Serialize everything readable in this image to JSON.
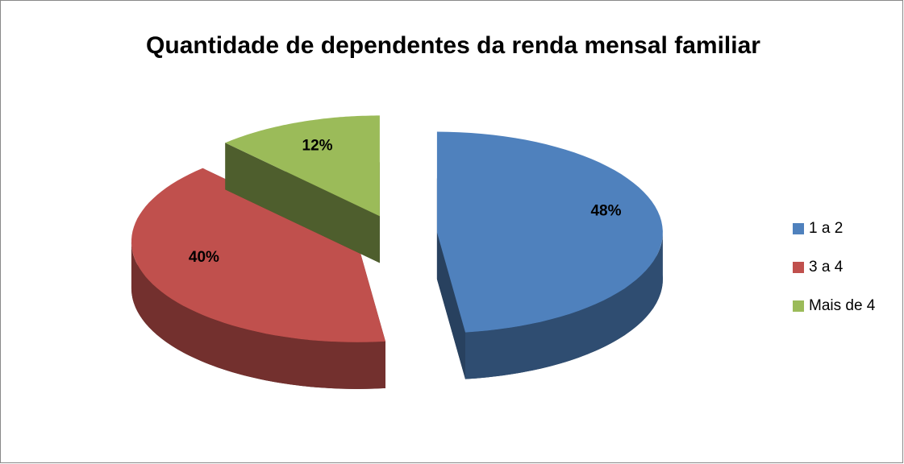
{
  "chart_data": {
    "type": "pie",
    "title": "Quantidade de dependentes da renda mensal familiar",
    "categories": [
      "1 a 2",
      "3 a 4",
      "Mais de 4"
    ],
    "values": [
      48,
      40,
      12
    ],
    "value_labels": [
      "48%",
      "40%",
      "12%"
    ],
    "colors": [
      "#4f81bd",
      "#c0504d",
      "#9bbb59"
    ],
    "legend": "right"
  }
}
